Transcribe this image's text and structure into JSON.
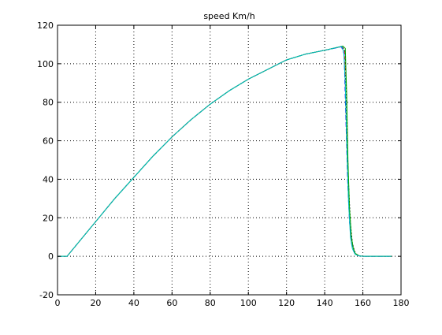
{
  "chart_data": {
    "type": "line",
    "title": "speed Km/h",
    "xlabel": "",
    "ylabel": "",
    "xlim": [
      0,
      180
    ],
    "ylim": [
      -20,
      120
    ],
    "xticks": [
      0,
      20,
      40,
      60,
      80,
      100,
      120,
      140,
      160,
      180
    ],
    "yticks": [
      -20,
      0,
      20,
      40,
      60,
      80,
      100,
      120
    ],
    "grid": true,
    "series": [
      {
        "color": "#ff0000",
        "dash": "4 3",
        "x": [
          0,
          5,
          10,
          20,
          30,
          40,
          50,
          60,
          70,
          80,
          90,
          100,
          110,
          120,
          130,
          140,
          149,
          150.5,
          151,
          152,
          153,
          154,
          155,
          156,
          158,
          160,
          175
        ],
        "y": [
          0,
          0,
          6,
          18,
          30,
          41,
          52,
          62,
          71,
          79,
          86,
          92,
          97,
          102,
          105,
          107,
          109,
          107,
          80,
          45,
          22,
          9,
          4,
          1.5,
          0.3,
          0,
          0
        ]
      },
      {
        "color": "#0000ff",
        "dash": "6 3",
        "x": [
          0,
          5,
          10,
          20,
          30,
          40,
          50,
          60,
          70,
          80,
          90,
          100,
          110,
          120,
          130,
          140,
          148.8,
          150.2,
          151,
          152,
          153,
          154,
          155,
          156,
          158,
          160,
          175
        ],
        "y": [
          0,
          0,
          6,
          18,
          30,
          41,
          52,
          62,
          71,
          79,
          86,
          92,
          97,
          102,
          105,
          107,
          108.8,
          105,
          75,
          40,
          18,
          7,
          3,
          1,
          0.2,
          0,
          0
        ]
      },
      {
        "color": "#000000",
        "dash": "2 2",
        "x": [
          0,
          5,
          10,
          20,
          30,
          40,
          50,
          60,
          70,
          80,
          90,
          100,
          110,
          120,
          130,
          140,
          149.2,
          150.8,
          151.5,
          152.5,
          153.5,
          154.5,
          155.5,
          156.5,
          158,
          160,
          175
        ],
        "y": [
          0,
          0,
          6,
          18,
          30,
          41,
          52,
          62,
          71,
          79,
          86,
          92,
          97,
          102,
          105,
          107,
          109,
          106,
          70,
          38,
          17,
          7,
          3,
          1,
          0.2,
          0,
          0
        ]
      },
      {
        "color": "#00aa00",
        "dash": "",
        "x": [
          0,
          5,
          10,
          20,
          30,
          40,
          50,
          60,
          70,
          80,
          90,
          100,
          110,
          120,
          130,
          140,
          149.5,
          150.8,
          151.5,
          152.2,
          153,
          154,
          155,
          156,
          158,
          160,
          175
        ],
        "y": [
          0,
          0,
          6,
          18,
          30,
          41,
          52,
          62,
          71,
          79,
          86,
          92,
          97,
          102,
          105,
          107,
          109.2,
          108,
          85,
          50,
          25,
          10,
          4,
          1.5,
          0.3,
          0,
          0
        ]
      },
      {
        "color": "#00bfbf",
        "dash": "",
        "x": [
          0,
          5,
          10,
          20,
          30,
          40,
          50,
          60,
          70,
          80,
          90,
          100,
          110,
          120,
          130,
          140,
          149,
          150,
          150.8,
          151.5,
          152.5,
          153.5,
          154.5,
          156,
          158,
          160,
          175
        ],
        "y": [
          0,
          0,
          6,
          18,
          30,
          41,
          52,
          62,
          71,
          79,
          86,
          92,
          97,
          102,
          105,
          107,
          109,
          106,
          90,
          60,
          28,
          10,
          4,
          1,
          0.2,
          0,
          0
        ]
      }
    ]
  }
}
